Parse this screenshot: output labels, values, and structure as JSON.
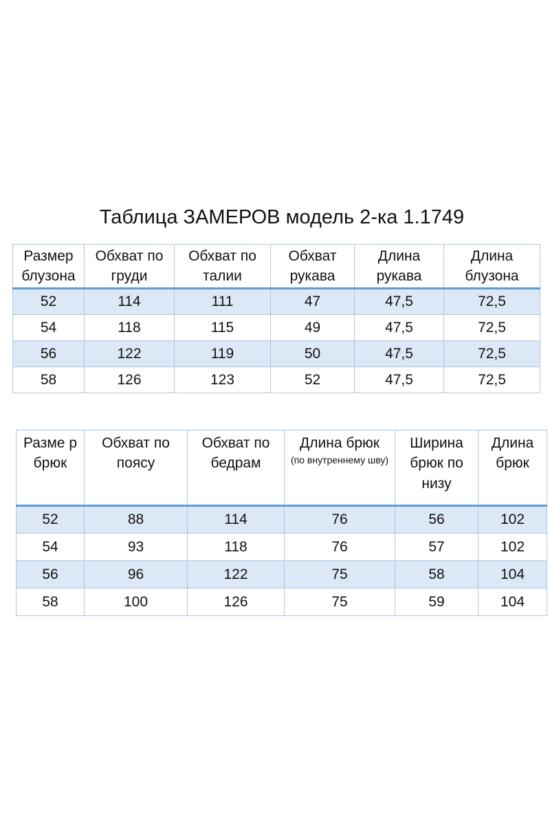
{
  "title": "Таблица ЗАМЕРОВ модель 2-ка 1.1749",
  "blouse_table": {
    "headers": [
      "Размер блузона",
      "Обхват по груди",
      "Обхват по талии",
      "Обхват рукава",
      "Длина рукава",
      "Длина блузона"
    ],
    "rows": [
      [
        "52",
        "114",
        "111",
        "47",
        "47,5",
        "72,5"
      ],
      [
        "54",
        "118",
        "115",
        "49",
        "47,5",
        "72,5"
      ],
      [
        "56",
        "122",
        "119",
        "50",
        "47,5",
        "72,5"
      ],
      [
        "58",
        "126",
        "123",
        "52",
        "47,5",
        "72,5"
      ]
    ]
  },
  "trousers_table": {
    "headers": [
      "Разме р брюк",
      "Обхват по поясу",
      "Обхват по бедрам",
      "Длина брюк",
      "Ширина брюк по низу",
      "Длина брюк"
    ],
    "header_note": "(по внутреннему шву)",
    "rows": [
      [
        "52",
        "88",
        "114",
        "76",
        "56",
        "102"
      ],
      [
        "54",
        "93",
        "118",
        "76",
        "57",
        "102"
      ],
      [
        "56",
        "96",
        "122",
        "75",
        "58",
        "104"
      ],
      [
        "58",
        "100",
        "126",
        "75",
        "59",
        "104"
      ]
    ]
  },
  "colors": {
    "row_band": "#dde8f6",
    "border": "#a9c6e6",
    "header_rule": "#5b9bd5"
  }
}
